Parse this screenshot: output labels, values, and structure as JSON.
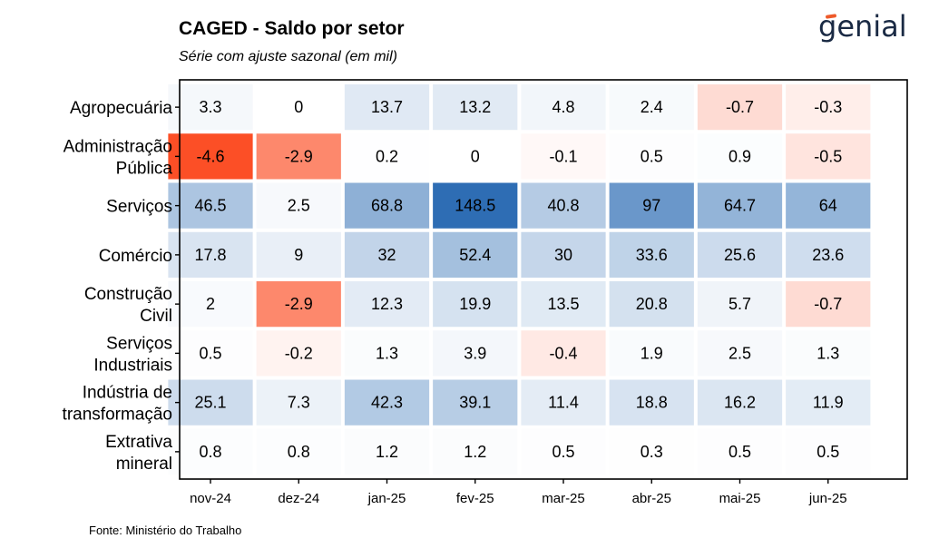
{
  "header": {
    "title": "CAGED - Saldo por setor",
    "subtitle": "Série com ajuste sazonal (em mil)",
    "logo_text": "genial"
  },
  "footer": {
    "source": "Fonte: Ministério do Trabalho"
  },
  "colors": {
    "positive_max": "#2e6db4",
    "negative_max": "#fc4f26",
    "neutral": "#ffffff",
    "logo_accent": "#ee5a2a",
    "logo_text": "#1a2a44"
  },
  "chart_data": {
    "type": "heatmap",
    "title": "CAGED - Saldo por setor",
    "subtitle": "Série com ajuste sazonal (em mil)",
    "x": [
      "nov-24",
      "dez-24",
      "jan-25",
      "fev-25",
      "mar-25",
      "abr-25",
      "mai-25",
      "jun-25"
    ],
    "y": [
      "Agropecuária",
      "Administração Pública",
      "Serviços",
      "Comércio",
      "Construção Civil",
      "Serviços Industriais",
      "Indústria de transformação",
      "Extrativa mineral"
    ],
    "values": [
      [
        3.3,
        0,
        13.7,
        13.2,
        4.8,
        2.4,
        -0.7,
        -0.3
      ],
      [
        -4.6,
        -2.9,
        0.2,
        0,
        -0.1,
        0.5,
        0.9,
        -0.5
      ],
      [
        46.5,
        2.5,
        68.8,
        148.5,
        40.8,
        97,
        64.7,
        64
      ],
      [
        17.8,
        9,
        32,
        52.4,
        30,
        33.6,
        25.6,
        23.6
      ],
      [
        2,
        -2.9,
        12.3,
        19.9,
        13.5,
        20.8,
        5.7,
        -0.7
      ],
      [
        0.5,
        -0.2,
        1.3,
        3.9,
        -0.4,
        1.9,
        2.5,
        1.3
      ],
      [
        25.1,
        7.3,
        42.3,
        39.1,
        11.4,
        18.8,
        16.2,
        11.9
      ],
      [
        0.8,
        0.8,
        1.2,
        1.2,
        0.5,
        0.3,
        0.5,
        0.5
      ]
    ],
    "grid": false,
    "legend": "none"
  }
}
